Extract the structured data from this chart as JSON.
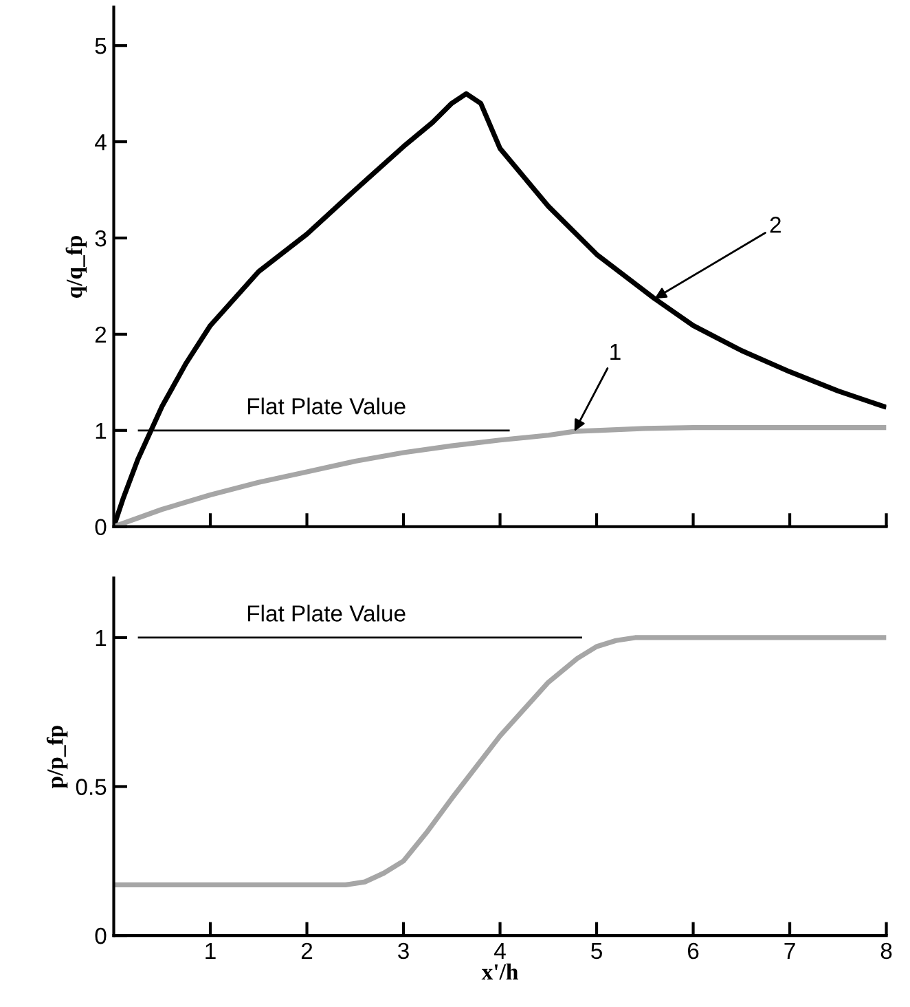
{
  "chart_data": [
    {
      "type": "line",
      "ylabel": "q/q_fp",
      "xlim": [
        0,
        8
      ],
      "ylim": [
        0,
        5.4
      ],
      "xticks": [
        1,
        2,
        3,
        4,
        5,
        6,
        7,
        8
      ],
      "yticks": [
        0,
        1,
        2,
        3,
        4,
        5
      ],
      "tick_labels": "y",
      "grid": false,
      "legend": false,
      "series": [
        {
          "color": "#000000",
          "x": [
            0,
            0.1,
            0.25,
            0.5,
            0.75,
            1,
            1.5,
            2,
            2.5,
            3,
            3.3,
            3.5,
            3.65,
            3.8,
            4,
            4.5,
            5,
            5.6,
            6,
            6.5,
            7,
            7.5,
            8
          ],
          "values": [
            0,
            0.3,
            0.7,
            1.25,
            1.7,
            2.09,
            2.65,
            3.04,
            3.5,
            3.95,
            4.2,
            4.4,
            4.5,
            4.4,
            3.93,
            3.33,
            2.83,
            2.37,
            2.09,
            1.83,
            1.61,
            1.41,
            1.24
          ]
        },
        {
          "color": "#a6a6a6",
          "x": [
            0,
            0.5,
            1,
            1.5,
            2,
            2.5,
            3,
            3.5,
            4,
            4.5,
            4.77,
            5,
            5.5,
            6,
            7,
            8
          ],
          "values": [
            0,
            0.18,
            0.33,
            0.46,
            0.57,
            0.68,
            0.77,
            0.84,
            0.9,
            0.95,
            0.99,
            1.0,
            1.02,
            1.03,
            1.03,
            1.03
          ]
        },
        {
          "color": "#000000",
          "type": "line",
          "x": [
            0.25,
            4.1
          ],
          "values": [
            1,
            1
          ]
        }
      ],
      "annotations": [
        {
          "text": "Flat Plate Value",
          "x": 2.2,
          "y": 1.0
        },
        {
          "text": "2",
          "x": 5.6,
          "y": 2.37
        },
        {
          "text": "1",
          "x": 4.77,
          "y": 0.99
        }
      ]
    },
    {
      "type": "line",
      "xlabel": "x'/h",
      "ylabel": "p/p_fp",
      "xlim": [
        0,
        8
      ],
      "ylim": [
        0,
        1.2
      ],
      "xticks": [
        1,
        2,
        3,
        4,
        5,
        6,
        7,
        8
      ],
      "yticks": [
        0,
        0.5,
        1
      ],
      "grid": false,
      "legend": false,
      "series": [
        {
          "color": "#a6a6a6",
          "x": [
            0,
            1,
            2,
            2.4,
            2.6,
            2.8,
            3,
            3.25,
            3.5,
            4,
            4.5,
            4.8,
            5,
            5.2,
            5.4,
            6,
            7,
            8
          ],
          "values": [
            0.17,
            0.17,
            0.17,
            0.17,
            0.18,
            0.21,
            0.25,
            0.35,
            0.46,
            0.67,
            0.85,
            0.93,
            0.97,
            0.99,
            1.0,
            1.0,
            1.0,
            1.0
          ]
        },
        {
          "color": "#000000",
          "type": "line",
          "x": [
            0.25,
            4.85
          ],
          "values": [
            1,
            1
          ]
        }
      ],
      "annotations": [
        {
          "text": "Flat Plate Value",
          "x": 2.2,
          "y": 1.0
        }
      ]
    }
  ]
}
